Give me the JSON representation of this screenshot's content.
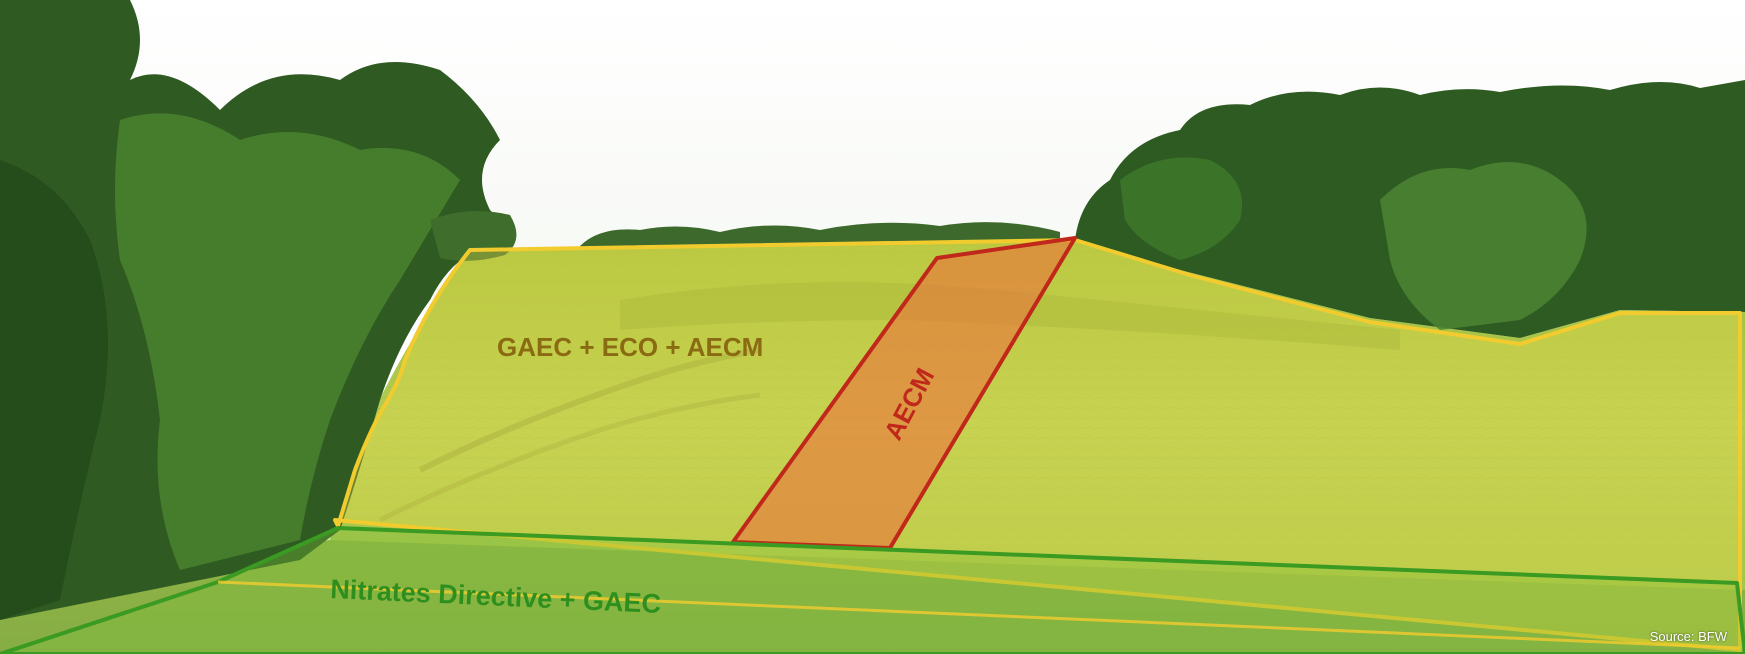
{
  "zones": {
    "gaec_eco_aecm": {
      "label": "GAEC + ECO + AECM",
      "stroke": "#f2cc2e",
      "fill": "#f5e04a",
      "text_color": "#8a6a12"
    },
    "aecm": {
      "label": "AECM",
      "stroke": "#c0281c",
      "fill": "#f06a3a",
      "text_color": "#c0281c"
    },
    "nitrates_gaec": {
      "label": "Nitrates Directive + GAEC",
      "stroke": "#3a9a22",
      "fill": "#7fbf3a",
      "text_color": "#2f8f1e"
    }
  },
  "source": "Source: BFW"
}
